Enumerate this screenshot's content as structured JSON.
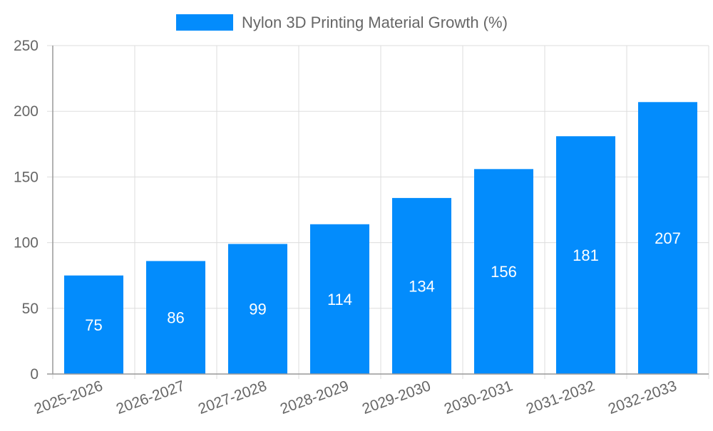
{
  "chart_data": {
    "type": "bar",
    "title": "",
    "legend": [
      {
        "label": "Nylon 3D Printing Material Growth (%)",
        "color": "#038cfc"
      }
    ],
    "legend_position": "top",
    "categories": [
      "2025-2026",
      "2026-2027",
      "2027-2028",
      "2028-2029",
      "2029-2030",
      "2030-2031",
      "2031-2032",
      "2032-2033"
    ],
    "series": [
      {
        "name": "Nylon 3D Printing Material Growth (%)",
        "values": [
          75,
          86,
          99,
          114,
          134,
          156,
          181,
          207
        ]
      }
    ],
    "xlabel": "",
    "ylabel": "",
    "ylim": [
      0,
      250
    ],
    "yticks": [
      0,
      50,
      100,
      150,
      200,
      250
    ],
    "grid": true,
    "data_labels": true
  }
}
